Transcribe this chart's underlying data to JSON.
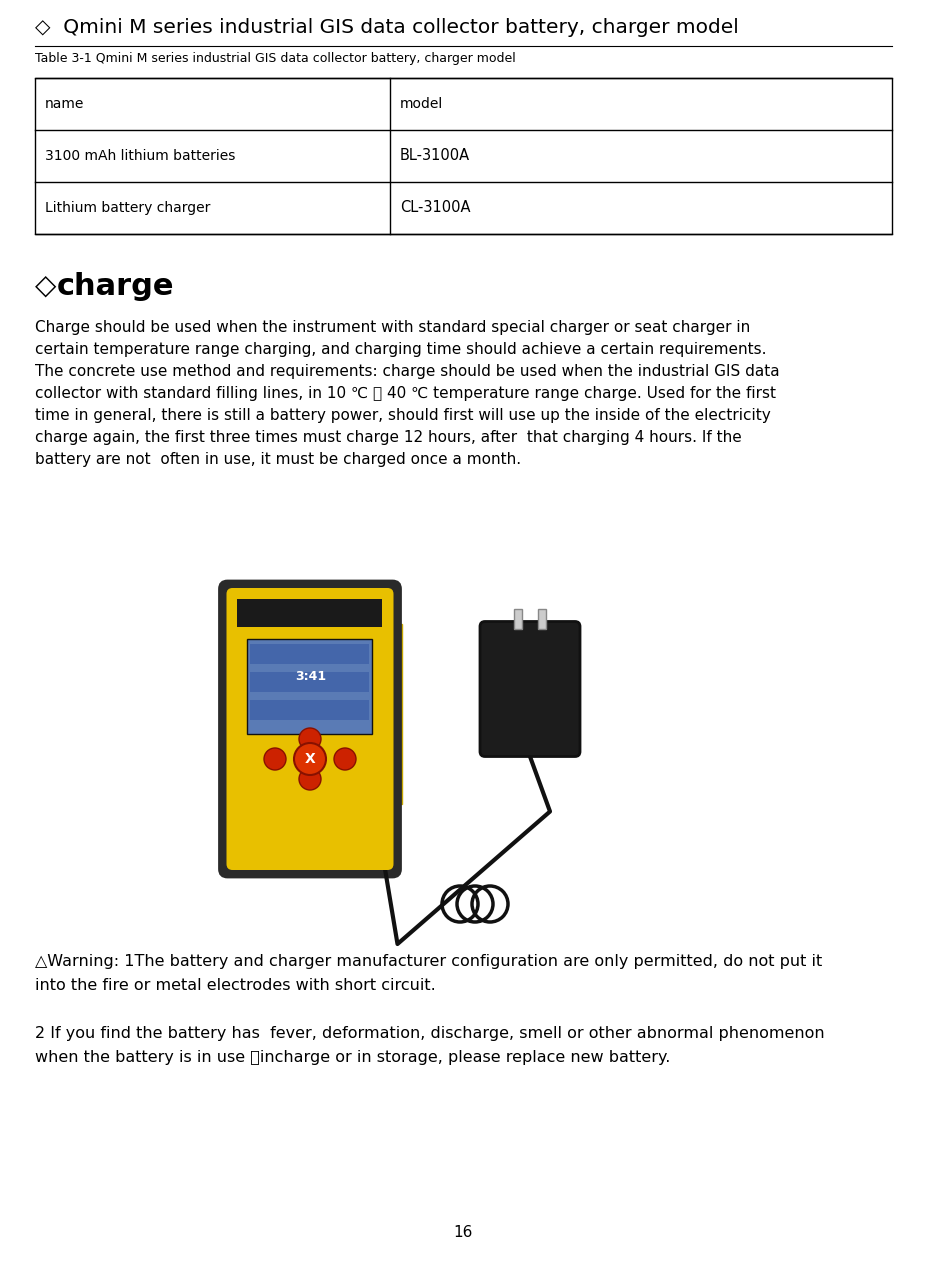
{
  "title": "◇  Qmini M series industrial GIS data collector battery, charger model",
  "table_caption": "Table 3-1 Qmini M series industrial GIS data collector battery, charger model",
  "table_headers": [
    "name",
    "model"
  ],
  "table_rows": [
    [
      "3100 mAh lithium batteries",
      "BL-3100A"
    ],
    [
      "Lithium battery charger",
      "CL-3100A"
    ]
  ],
  "section_prefix": "◇",
  "section_word": "charge",
  "charge_text_lines": [
    "Charge should be used when the instrument with standard special charger or seat charger in",
    "certain temperature range charging, and charging time should achieve a certain requirements.",
    "The concrete use method and requirements: charge should be used when the industrial GIS data",
    "collector with standard filling lines, in 10 ℃ ～ 40 ℃ temperature range charge. Used for the first",
    "time in general, there is still a battery power, should first will use up the inside of the electricity",
    "charge again, the first three times must charge 12 hours, after  that charging 4 hours. If the",
    "battery are not  often in use, it must be charged once a month."
  ],
  "warning_line1": "△Warning: 1The battery and charger manufacturer configuration are only permitted, do not put it",
  "warning_line2": "into the fire or metal electrodes with short circuit.",
  "warning2_line1": "2 If you find the battery has  fever, deformation, discharge, smell or other abnormal phenomenon",
  "warning2_line2": "when the battery is in use 、incharge or in storage, please replace new battery.",
  "page_number": "16",
  "bg_color": "#ffffff",
  "text_color": "#000000"
}
